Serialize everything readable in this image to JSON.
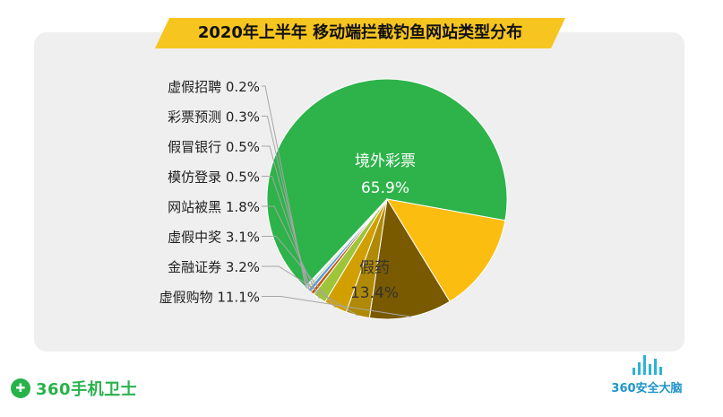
{
  "title": "2020年上半年 移动端拦截钓鱼网站类型分布",
  "colors": {
    "title_bar": "#f7c520",
    "panel": "#efefef",
    "brand_green": "#27b24a",
    "brand_blue": "#1f95c8"
  },
  "chart_data": {
    "type": "pie",
    "title": "2020年上半年 移动端拦截钓鱼网站类型分布",
    "slices": [
      {
        "label": "境外彩票",
        "value": 65.9,
        "display": "65.9%",
        "color": "#2db34a",
        "labeled_inside": true
      },
      {
        "label": "假药",
        "value": 13.4,
        "display": "13.4%",
        "color": "#fbbd10",
        "labeled_inside": true
      },
      {
        "label": "虚假购物",
        "value": 11.1,
        "display": "11.1%",
        "color": "#7a5a00"
      },
      {
        "label": "金融证券",
        "value": 3.2,
        "display": "3.2%",
        "color": "#b08a06"
      },
      {
        "label": "虚假中奖",
        "value": 3.1,
        "display": "3.1%",
        "color": "#d1a000"
      },
      {
        "label": "网站被黑",
        "value": 1.8,
        "display": "1.8%",
        "color": "#9ec43a"
      },
      {
        "label": "模仿登录",
        "value": 0.5,
        "display": "0.5%",
        "color": "#c55a11"
      },
      {
        "label": "假冒银行",
        "value": 0.5,
        "display": "0.5%",
        "color": "#5b9bd5"
      },
      {
        "label": "彩票预测",
        "value": 0.3,
        "display": "0.3%",
        "color": "#a9d18e"
      },
      {
        "label": "虚假招聘",
        "value": 0.2,
        "display": "0.2%",
        "color": "#bdd7ee"
      }
    ]
  },
  "brand_left": {
    "badge": "✚",
    "name": "360手机卫士"
  },
  "brand_right": {
    "name": "360安全大脑"
  }
}
